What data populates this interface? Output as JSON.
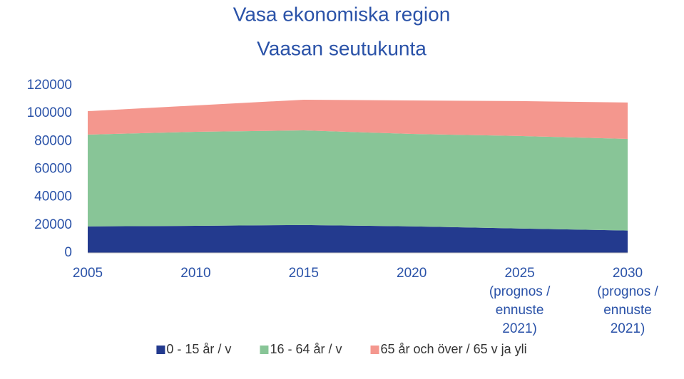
{
  "chart_data": {
    "type": "area",
    "stacked": true,
    "title": [
      "Vasa ekonomiska region",
      "Vaasan seutukunta"
    ],
    "categories": [
      "2005",
      "2010",
      "2015",
      "2020",
      [
        "2025",
        "(prognos /",
        "ennuste",
        "2021)"
      ],
      [
        "2030",
        "(prognos /",
        "ennuste",
        "2021)"
      ]
    ],
    "series": [
      {
        "name": "0 - 15 år / v",
        "color": "#233a8e",
        "values": [
          19000,
          19400,
          20000,
          19000,
          17500,
          16000
        ]
      },
      {
        "name": "16 - 64 år / v",
        "color": "#88c597",
        "values": [
          65800,
          67400,
          67800,
          66300,
          66300,
          65700
        ]
      },
      {
        "name": "65 år och över / 65 v ja yli",
        "color": "#f4978e",
        "values": [
          16800,
          18900,
          22000,
          24000,
          25000,
          26100
        ]
      }
    ],
    "ylim": [
      0,
      120000
    ],
    "yticks": [
      0,
      20000,
      40000,
      60000,
      80000,
      100000,
      120000
    ],
    "grid": false,
    "legend": "bottom"
  }
}
